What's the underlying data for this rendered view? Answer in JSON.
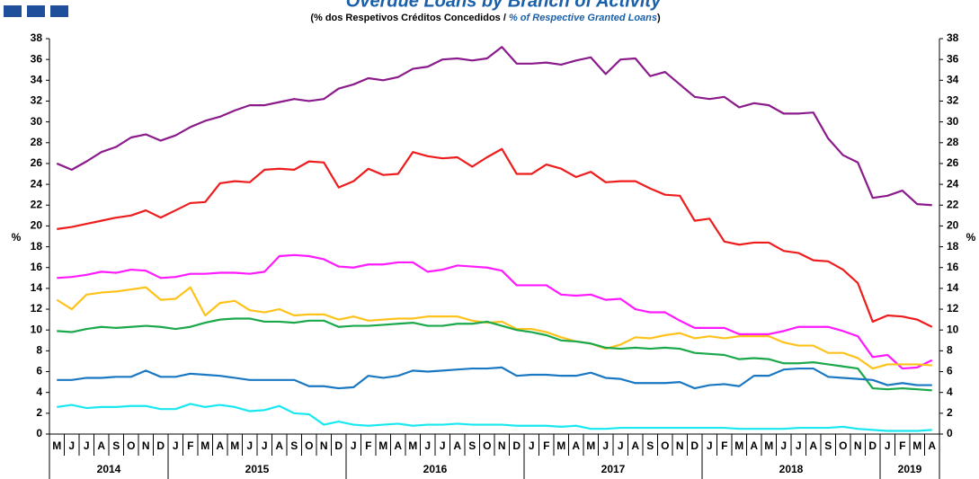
{
  "chart_data": {
    "type": "line",
    "title": "Overdue Loans by Branch of Activity",
    "subtitle_pt": "(% dos Respetivos Créditos Concedidos / ",
    "subtitle_en": "% of Respective Granted Loans",
    "subtitle_end": ")",
    "y_label": "%",
    "categories": [
      "M",
      "J",
      "J",
      "A",
      "S",
      "O",
      "N",
      "D",
      "J",
      "F",
      "M",
      "A",
      "M",
      "J",
      "J",
      "A",
      "S",
      "O",
      "N",
      "D",
      "J",
      "F",
      "M",
      "A",
      "M",
      "J",
      "J",
      "A",
      "S",
      "O",
      "N",
      "D",
      "J",
      "F",
      "M",
      "A",
      "M",
      "J",
      "J",
      "A",
      "S",
      "O",
      "N",
      "D",
      "J",
      "F",
      "M",
      "A",
      "M",
      "J",
      "J",
      "A",
      "S",
      "O",
      "N",
      "D",
      "J",
      "F",
      "M",
      "A"
    ],
    "years": [
      "2014",
      "2015",
      "2016",
      "2017",
      "2018",
      "2019"
    ],
    "ylim": [
      0,
      38
    ],
    "yticks": [
      0,
      2,
      4,
      6,
      8,
      10,
      12,
      14,
      16,
      18,
      20,
      22,
      24,
      26,
      28,
      30,
      32,
      34,
      36,
      38
    ],
    "series": [
      {
        "color": "#8b1a8b",
        "values": [
          26,
          25.4,
          26.2,
          27.1,
          27.6,
          28.5,
          28.8,
          28.2,
          28.7,
          29.5,
          30.1,
          30.5,
          31.1,
          31.6,
          31.6,
          31.9,
          32.2,
          32.0,
          32.2,
          33.2,
          33.6,
          34.2,
          34.0,
          34.3,
          35.1,
          35.3,
          36.0,
          36.1,
          35.9,
          36.1,
          37.2,
          35.6,
          35.6,
          35.7,
          35.5,
          35.9,
          36.2,
          34.6,
          36.0,
          36.1,
          34.4,
          34.8,
          33.6,
          32.4,
          32.2,
          32.4,
          31.4,
          31.8,
          31.6,
          30.8,
          30.8,
          30.9,
          28.4,
          26.8,
          26.1,
          22.7,
          22.9,
          23.4,
          22.1,
          22.0
        ]
      },
      {
        "color": "#ee1c1c",
        "values": [
          19.7,
          19.9,
          20.2,
          20.5,
          20.8,
          21.0,
          21.5,
          20.8,
          21.5,
          22.2,
          22.3,
          24.1,
          24.3,
          24.2,
          25.4,
          25.5,
          25.4,
          26.2,
          26.1,
          23.7,
          24.3,
          25.5,
          24.9,
          25.0,
          27.1,
          26.7,
          26.5,
          26.6,
          25.7,
          26.6,
          27.4,
          25.0,
          25.0,
          25.9,
          25.5,
          24.7,
          25.2,
          24.2,
          24.3,
          24.3,
          23.6,
          23.0,
          22.9,
          20.5,
          20.7,
          18.5,
          18.2,
          18.4,
          18.4,
          17.6,
          17.4,
          16.7,
          16.6,
          15.8,
          14.5,
          10.8,
          11.4,
          11.3,
          11.0,
          10.3
        ]
      },
      {
        "color": "#ff1aff",
        "values": [
          15.0,
          15.1,
          15.3,
          15.6,
          15.5,
          15.8,
          15.7,
          15.0,
          15.1,
          15.4,
          15.4,
          15.5,
          15.5,
          15.4,
          15.6,
          17.1,
          17.2,
          17.1,
          16.8,
          16.1,
          16.0,
          16.3,
          16.3,
          16.5,
          16.5,
          15.6,
          15.8,
          16.2,
          16.1,
          16.0,
          15.7,
          14.3,
          14.3,
          14.3,
          13.4,
          13.3,
          13.4,
          12.9,
          13.0,
          12.0,
          11.7,
          11.7,
          10.9,
          10.2,
          10.2,
          10.2,
          9.6,
          9.6,
          9.6,
          9.9,
          10.3,
          10.3,
          10.3,
          9.9,
          9.4,
          7.4,
          7.6,
          6.3,
          6.4,
          7.1
        ]
      },
      {
        "color": "#ffc21a",
        "values": [
          12.9,
          12.0,
          13.4,
          13.6,
          13.7,
          13.9,
          14.1,
          12.9,
          13.0,
          14.1,
          11.4,
          12.6,
          12.8,
          11.9,
          11.7,
          12.0,
          11.4,
          11.5,
          11.5,
          11.0,
          11.3,
          10.9,
          11.0,
          11.1,
          11.1,
          11.3,
          11.3,
          11.3,
          10.9,
          10.7,
          10.8,
          10.1,
          10.1,
          9.8,
          9.3,
          8.9,
          8.7,
          8.2,
          8.6,
          9.3,
          9.2,
          9.5,
          9.7,
          9.2,
          9.4,
          9.2,
          9.4,
          9.4,
          9.4,
          8.8,
          8.5,
          8.5,
          7.8,
          7.8,
          7.3,
          6.3,
          6.7,
          6.7,
          6.7,
          6.6
        ]
      },
      {
        "color": "#1aa84a",
        "values": [
          9.9,
          9.8,
          10.1,
          10.3,
          10.2,
          10.3,
          10.4,
          10.3,
          10.1,
          10.3,
          10.7,
          11.0,
          11.1,
          11.1,
          10.8,
          10.8,
          10.7,
          10.9,
          10.9,
          10.3,
          10.4,
          10.4,
          10.5,
          10.6,
          10.7,
          10.4,
          10.4,
          10.6,
          10.6,
          10.8,
          10.4,
          10.0,
          9.8,
          9.5,
          9.0,
          8.9,
          8.7,
          8.3,
          8.2,
          8.3,
          8.2,
          8.3,
          8.2,
          7.8,
          7.7,
          7.6,
          7.2,
          7.3,
          7.2,
          6.8,
          6.8,
          6.9,
          6.7,
          6.5,
          6.3,
          4.4,
          4.3,
          4.4,
          4.3,
          4.2
        ]
      },
      {
        "color": "#1a78c2",
        "values": [
          5.2,
          5.2,
          5.4,
          5.4,
          5.5,
          5.5,
          6.1,
          5.5,
          5.5,
          5.8,
          5.7,
          5.6,
          5.4,
          5.2,
          5.2,
          5.2,
          5.2,
          4.6,
          4.6,
          4.4,
          4.5,
          5.6,
          5.4,
          5.6,
          6.1,
          6.0,
          6.1,
          6.2,
          6.3,
          6.3,
          6.4,
          5.6,
          5.7,
          5.7,
          5.6,
          5.6,
          5.9,
          5.4,
          5.3,
          4.9,
          4.9,
          4.9,
          5.0,
          4.4,
          4.7,
          4.8,
          4.6,
          5.6,
          5.6,
          6.2,
          6.3,
          6.3,
          5.5,
          5.4,
          5.3,
          5.2,
          4.7,
          4.9,
          4.7,
          4.7
        ]
      },
      {
        "color": "#1ae8f0",
        "values": [
          2.6,
          2.8,
          2.5,
          2.6,
          2.6,
          2.7,
          2.7,
          2.4,
          2.4,
          2.9,
          2.6,
          2.8,
          2.6,
          2.2,
          2.3,
          2.7,
          2.0,
          1.9,
          0.9,
          1.2,
          0.9,
          0.8,
          0.9,
          1.0,
          0.8,
          0.9,
          0.9,
          1.0,
          0.9,
          0.9,
          0.9,
          0.8,
          0.8,
          0.8,
          0.7,
          0.8,
          0.5,
          0.5,
          0.6,
          0.6,
          0.6,
          0.6,
          0.6,
          0.6,
          0.6,
          0.6,
          0.5,
          0.5,
          0.5,
          0.5,
          0.6,
          0.6,
          0.6,
          0.7,
          0.5,
          0.4,
          0.3,
          0.3,
          0.3,
          0.4
        ]
      }
    ]
  }
}
